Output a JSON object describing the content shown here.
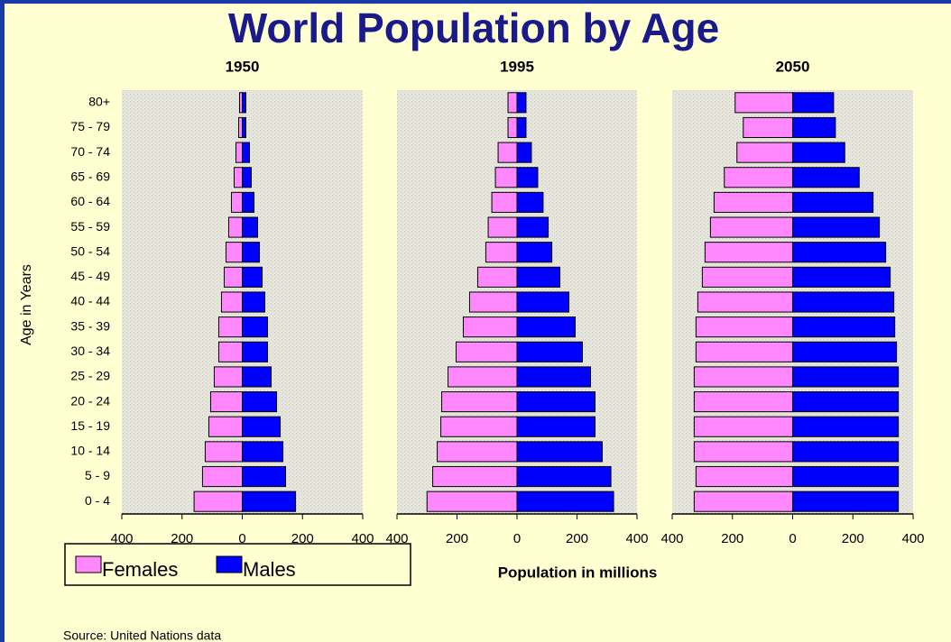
{
  "title": "World Population by Age",
  "ylabel": "Age in Years",
  "xlabel": "Population in millions",
  "source": "Source:  United Nations data",
  "categories": [
    "0 - 4",
    "5 - 9",
    "10 - 14",
    "15 - 19",
    "20 - 24",
    "25 - 29",
    "30 - 34",
    "35 - 39",
    "40 - 44",
    "45 - 49",
    "50 - 54",
    "55 - 59",
    "60 - 64",
    "65 - 69",
    "70 - 74",
    "75 - 79",
    "80+"
  ],
  "legend": [
    {
      "name": "Females",
      "color": "#ff88ff"
    },
    {
      "name": "Males",
      "color": "#0000ff"
    }
  ],
  "chart_data": [
    {
      "type": "bar",
      "orientation": "horizontal",
      "title": "1950",
      "xlim": [
        -400,
        400
      ],
      "xticks": [
        {
          "value": -400,
          "label": "400"
        },
        {
          "value": -200,
          "label": "200"
        },
        0,
        200,
        400
      ],
      "series": [
        {
          "values": [
            -160,
            -132,
            -123,
            -111,
            -105,
            -93,
            -78,
            -78,
            -69,
            -60,
            -54,
            -45,
            -36,
            -27,
            -21,
            -12,
            -9
          ]
        },
        {
          "values": [
            177,
            144,
            135,
            126,
            114,
            96,
            84,
            84,
            75,
            66,
            57,
            51,
            39,
            30,
            24,
            12,
            12
          ]
        }
      ]
    },
    {
      "type": "bar",
      "orientation": "horizontal",
      "title": "1995",
      "xlim": [
        -400,
        400
      ],
      "xticks": [
        {
          "value": -400,
          "label": "400"
        },
        {
          "value": -200,
          "label": "200"
        },
        0,
        200,
        400
      ],
      "series": [
        {
          "values": [
            -300,
            -281,
            -266,
            -254,
            -251,
            -230,
            -203,
            -179,
            -158,
            -131,
            -104,
            -96,
            -84,
            -72,
            -63,
            -30,
            -30
          ]
        },
        {
          "values": [
            322,
            313,
            284,
            260,
            260,
            245,
            218,
            194,
            173,
            143,
            116,
            104,
            87,
            69,
            48,
            30,
            30
          ]
        }
      ]
    },
    {
      "type": "bar",
      "orientation": "horizontal",
      "title": "2050",
      "xlim": [
        -400,
        400
      ],
      "xticks": [
        {
          "value": -400,
          "label": "400"
        },
        {
          "value": -200,
          "label": "200"
        },
        0,
        200,
        400
      ],
      "series": [
        {
          "values": [
            -327,
            -321,
            -327,
            -327,
            -327,
            -327,
            -321,
            -321,
            -315,
            -300,
            -291,
            -273,
            -261,
            -227,
            -185,
            -164,
            -191
          ]
        },
        {
          "values": [
            351,
            351,
            351,
            351,
            351,
            351,
            345,
            339,
            336,
            324,
            309,
            288,
            267,
            221,
            173,
            142,
            136
          ]
        }
      ]
    }
  ]
}
